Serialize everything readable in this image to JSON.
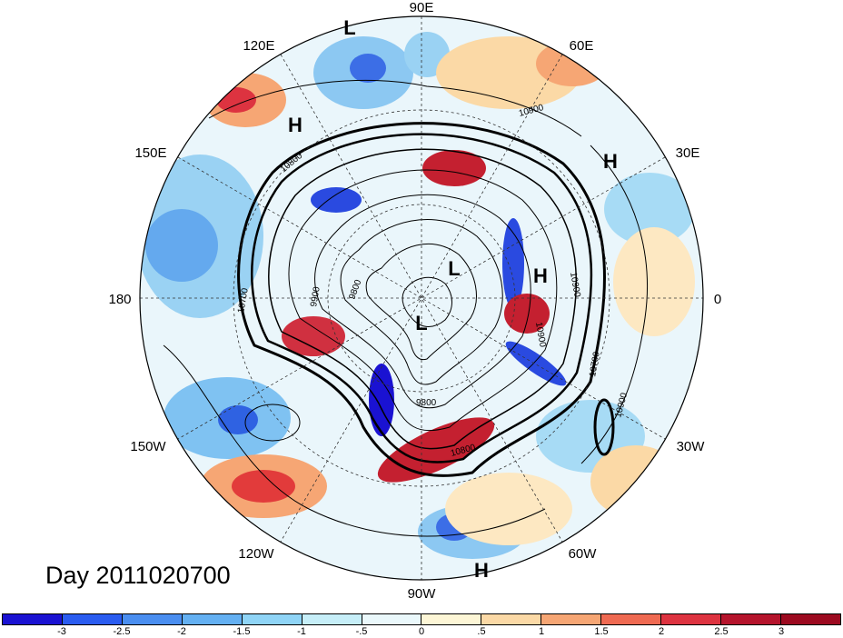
{
  "title": "Day 2011020700",
  "longitude_labels": [
    "90E",
    "60E",
    "30E",
    "0",
    "30W",
    "60W",
    "90W",
    "120W",
    "150W",
    "180",
    "150E",
    "120E"
  ],
  "pressure_systems": [
    "L",
    "H",
    "H",
    "L",
    "H",
    "L",
    "H"
  ],
  "contour_labels": [
    "10900",
    "10800",
    "10700",
    "9900",
    "9800",
    "10700",
    "10900",
    "9800",
    "10800",
    "10900",
    "10900"
  ],
  "colorbar": {
    "colors": [
      "#1a12d2",
      "#2a5cf0",
      "#4a8ef0",
      "#64b0f2",
      "#8fd4f6",
      "#c6eef8",
      "#eaf8fb",
      "#fdf6d6",
      "#fbd9a6",
      "#f6a674",
      "#ef6a52",
      "#dd3340",
      "#b5142c",
      "#9c0a20"
    ],
    "tick_labels": [
      "-3",
      "-2.5",
      "-2",
      "-1.5",
      "-1",
      "-.5",
      "0",
      ".5",
      "1",
      "1.5",
      "2",
      "2.5",
      "3"
    ]
  }
}
